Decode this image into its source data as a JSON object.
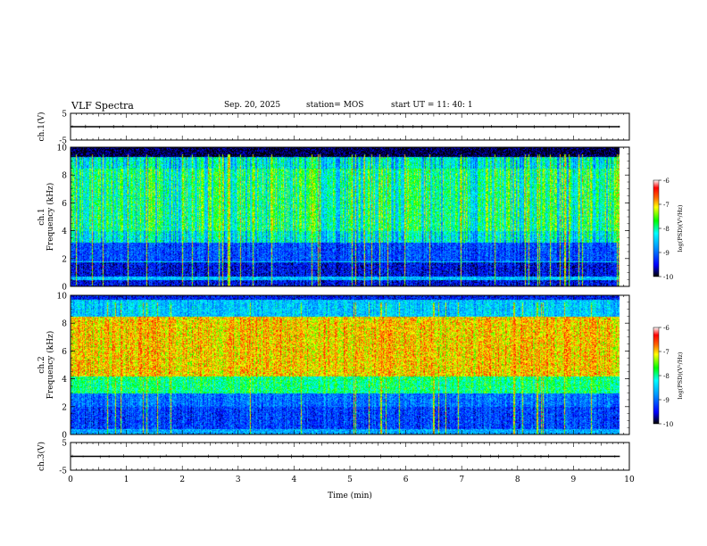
{
  "header": {
    "title": "VLF Spectra",
    "date": "Sep. 20, 2025",
    "station": "station= MOS",
    "start_ut": "start  UT =   11: 40: 1"
  },
  "chart_data": [
    {
      "type": "line",
      "panel": "ch1-waveform",
      "ylabel": "ch.1(V)",
      "ylim": [
        -5,
        5
      ],
      "yticks": [
        "5",
        "-5"
      ],
      "xlim": [
        0,
        10
      ],
      "series": [
        {
          "x": [
            0,
            9.83
          ],
          "y": [
            0,
            0
          ]
        }
      ]
    },
    {
      "type": "heatmap",
      "panel": "ch1-spectrogram",
      "ylabel": "ch.1\nFrequency (kHz)",
      "ylim": [
        0,
        10
      ],
      "yticks": [
        "0",
        "2",
        "4",
        "6",
        "8",
        "10"
      ],
      "xlim": [
        0,
        10
      ],
      "data_end_min": 9.83,
      "colorbar": {
        "label": "log(PSD)(V²/Hz)",
        "range": [
          -10,
          -6
        ],
        "ticks": [
          "-6",
          "-7",
          "-8",
          "-9",
          "-10"
        ]
      }
    },
    {
      "type": "heatmap",
      "panel": "ch2-spectrogram",
      "ylabel": "ch.2\nFrequency (kHz)",
      "ylim": [
        0,
        10
      ],
      "yticks": [
        "0",
        "2",
        "4",
        "6",
        "8",
        "10"
      ],
      "xlim": [
        0,
        10
      ],
      "data_end_min": 9.83,
      "colorbar": {
        "label": "log(PSD)(V²/Hz)",
        "range": [
          -10,
          -6
        ],
        "ticks": [
          "-6",
          "-7",
          "-8",
          "-9",
          "-10"
        ]
      }
    },
    {
      "type": "line",
      "panel": "ch3-waveform",
      "ylabel": "ch.3(V)",
      "ylim": [
        -5,
        5
      ],
      "yticks": [
        "5",
        "-5"
      ],
      "xlim": [
        0,
        10
      ],
      "xlabel": "Time  (min)",
      "xticks": [
        "0",
        "1",
        "2",
        "3",
        "4",
        "5",
        "6",
        "7",
        "8",
        "9",
        "10"
      ],
      "series": [
        {
          "x": [
            0,
            9.83
          ],
          "y": [
            0,
            0
          ]
        }
      ]
    }
  ]
}
